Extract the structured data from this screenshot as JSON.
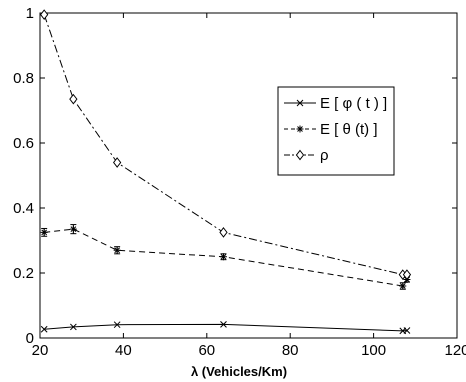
{
  "chart_data": {
    "type": "line",
    "title": "",
    "xlabel": "λ (Vehicles/Km)",
    "ylabel": "",
    "xlim": [
      20,
      120
    ],
    "ylim": [
      0,
      1
    ],
    "xticks": [
      "20",
      "40",
      "60",
      "80",
      "100",
      "120"
    ],
    "yticks": [
      "0",
      "0.2",
      "0.4",
      "0.6",
      "0.8",
      "1"
    ],
    "grid": false,
    "legend_position": "middle-right",
    "series": [
      {
        "name": "E [ φ ( t ) ]",
        "marker": "x",
        "line_style": "solid",
        "points": [
          {
            "x": 21,
            "y": 0.027
          },
          {
            "x": 28,
            "y": 0.034
          },
          {
            "x": 38.5,
            "y": 0.041
          },
          {
            "x": 64,
            "y": 0.042
          },
          {
            "x": 107,
            "y": 0.022
          },
          {
            "x": 108,
            "y": 0.023
          }
        ]
      },
      {
        "name": "E [ θ (t) ]",
        "marker": "star",
        "line_style": "dashed",
        "error_bars": true,
        "points": [
          {
            "x": 21,
            "y": 0.325,
            "err": 0.012
          },
          {
            "x": 28,
            "y": 0.335,
            "err": 0.014
          },
          {
            "x": 38.5,
            "y": 0.27,
            "err": 0.011
          },
          {
            "x": 64,
            "y": 0.25,
            "err": 0.009
          },
          {
            "x": 107,
            "y": 0.16,
            "err": 0.01
          },
          {
            "x": 108,
            "y": 0.18,
            "err": 0.008
          }
        ]
      },
      {
        "name": "ρ",
        "marker": "diamond",
        "line_style": "dash-dot",
        "points": [
          {
            "x": 21,
            "y": 0.995
          },
          {
            "x": 28,
            "y": 0.735
          },
          {
            "x": 38.5,
            "y": 0.54
          },
          {
            "x": 64,
            "y": 0.325
          },
          {
            "x": 107,
            "y": 0.195
          },
          {
            "x": 108,
            "y": 0.195
          }
        ]
      }
    ]
  }
}
